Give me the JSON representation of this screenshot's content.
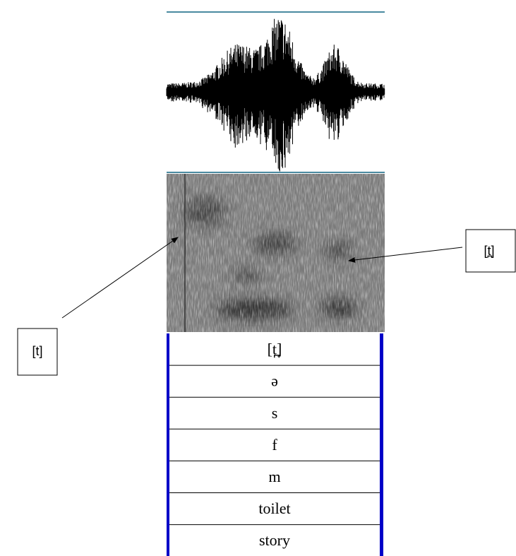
{
  "annotations": {
    "left": "[t]",
    "right": "[t̪]"
  },
  "table": {
    "rows": [
      "[t̪]",
      "ə",
      "s",
      "f",
      "m",
      "toilet",
      "story"
    ]
  }
}
